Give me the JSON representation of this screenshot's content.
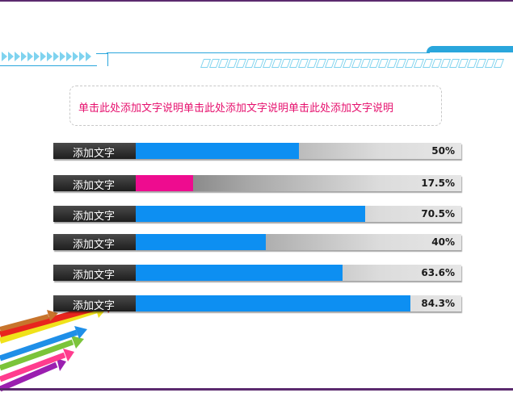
{
  "caption": "单击此处添加文字说明单击此处添加文字说明单击此处添加文字说明",
  "colors": {
    "blue": "#0d8ff2",
    "magenta": "#ee0c8f",
    "caption": "#e6116e"
  },
  "bars": [
    {
      "label": "添加文字",
      "value_text": "50%",
      "value": 0.5,
      "color": "#0d8ff2"
    },
    {
      "label": "添加文字",
      "value_text": "17.5%",
      "value": 0.175,
      "color": "#ee0c8f"
    },
    {
      "label": "添加文字",
      "value_text": "70.5%",
      "value": 0.705,
      "color": "#0d8ff2"
    },
    {
      "label": "添加文字",
      "value_text": "40%",
      "value": 0.4,
      "color": "#0d8ff2"
    },
    {
      "label": "添加文字",
      "value_text": "63.6%",
      "value": 0.636,
      "color": "#0d8ff2"
    },
    {
      "label": "添加文字",
      "value_text": "84.3%",
      "value": 0.843,
      "color": "#0d8ff2"
    }
  ]
}
